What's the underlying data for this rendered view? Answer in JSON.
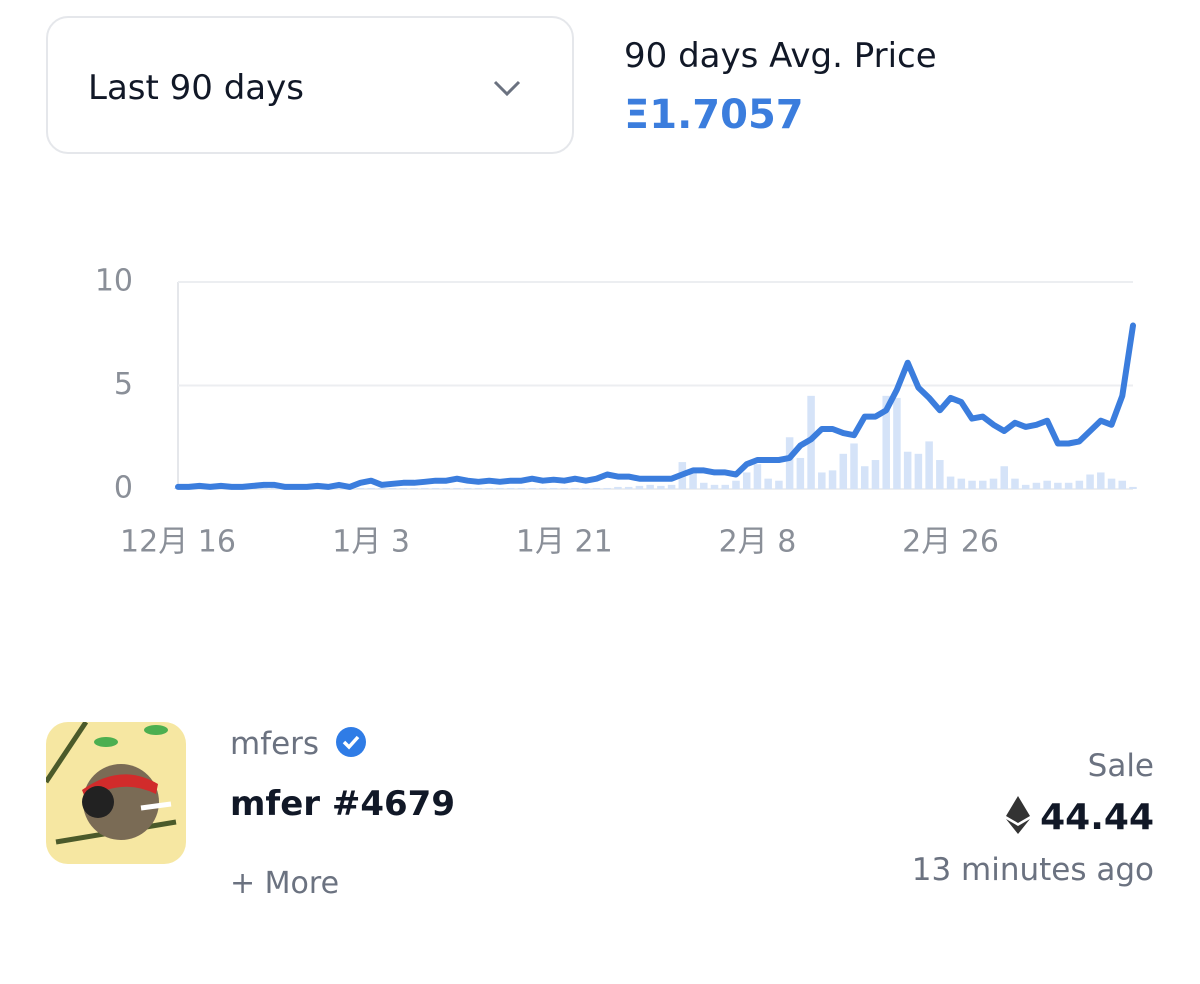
{
  "filter": {
    "label": "Last 90 days"
  },
  "summary": {
    "label": "90 days Avg. Price",
    "value": "Ξ1.7057"
  },
  "chart_data": {
    "type": "line",
    "categories": [
      "12月 16",
      null,
      null,
      null,
      null,
      null,
      null,
      null,
      null,
      null,
      null,
      null,
      null,
      null,
      null,
      null,
      null,
      null,
      "1月 3",
      null,
      null,
      null,
      null,
      null,
      null,
      null,
      null,
      null,
      null,
      null,
      null,
      null,
      null,
      null,
      null,
      null,
      "1月 21",
      null,
      null,
      null,
      null,
      null,
      null,
      null,
      null,
      null,
      null,
      null,
      null,
      null,
      null,
      null,
      null,
      null,
      "2月 8",
      null,
      null,
      null,
      null,
      null,
      null,
      null,
      null,
      null,
      null,
      null,
      null,
      null,
      null,
      null,
      null,
      null,
      "2月 26",
      null,
      null,
      null,
      null,
      null,
      null,
      null,
      null,
      null,
      null,
      null,
      null,
      null,
      null,
      null,
      null,
      null
    ],
    "series": [
      {
        "type": "bar",
        "color": "#d5e3f8",
        "values": [
          0.05,
          0.05,
          0.05,
          0.05,
          0.05,
          0.05,
          0.05,
          0.05,
          0.05,
          0.05,
          0.05,
          0.05,
          0.05,
          0.05,
          0.05,
          0.05,
          0.05,
          0.05,
          0.05,
          0.05,
          0.05,
          0.05,
          0.05,
          0.05,
          0.05,
          0.05,
          0.05,
          0.05,
          0.05,
          0.05,
          0.05,
          0.05,
          0.05,
          0.05,
          0.05,
          0.05,
          0.05,
          0.05,
          0.05,
          0.05,
          0.05,
          0.1,
          0.1,
          0.15,
          0.2,
          0.15,
          0.2,
          1.3,
          0.9,
          0.3,
          0.2,
          0.2,
          0.4,
          0.8,
          1.2,
          0.5,
          0.4,
          2.5,
          1.5,
          4.5,
          0.8,
          0.9,
          1.7,
          2.2,
          1.1,
          1.4,
          4.5,
          4.4,
          1.8,
          1.7,
          2.3,
          1.4,
          0.6,
          0.5,
          0.4,
          0.4,
          0.5,
          1.1,
          0.5,
          0.2,
          0.3,
          0.4,
          0.3,
          0.3,
          0.4,
          0.7,
          0.8,
          0.5,
          0.4,
          0.1
        ]
      },
      {
        "type": "line",
        "color": "#3b7ddd",
        "values": [
          0.1,
          0.1,
          0.15,
          0.1,
          0.15,
          0.1,
          0.1,
          0.15,
          0.2,
          0.2,
          0.1,
          0.1,
          0.1,
          0.15,
          0.1,
          0.2,
          0.1,
          0.3,
          0.4,
          0.2,
          0.25,
          0.3,
          0.3,
          0.35,
          0.4,
          0.4,
          0.5,
          0.4,
          0.35,
          0.4,
          0.35,
          0.4,
          0.4,
          0.5,
          0.4,
          0.45,
          0.4,
          0.5,
          0.4,
          0.5,
          0.7,
          0.6,
          0.6,
          0.5,
          0.5,
          0.5,
          0.5,
          0.7,
          0.9,
          0.9,
          0.8,
          0.8,
          0.7,
          1.2,
          1.4,
          1.4,
          1.4,
          1.5,
          2.1,
          2.4,
          2.9,
          2.9,
          2.7,
          2.6,
          3.5,
          3.5,
          3.8,
          4.8,
          6.1,
          4.9,
          4.4,
          3.8,
          4.4,
          4.2,
          3.4,
          3.5,
          3.1,
          2.8,
          3.2,
          3.0,
          3.1,
          3.3,
          2.2,
          2.2,
          2.3,
          2.8,
          3.3,
          3.1,
          4.5,
          7.9
        ]
      }
    ],
    "ylim": [
      0,
      10
    ],
    "yticks": [
      0,
      5,
      10
    ],
    "grid": true
  },
  "item": {
    "collection": "mfers",
    "name": "mfer #4679",
    "more": "+ More",
    "event": "Sale",
    "price": "44.44",
    "time": "13 minutes ago"
  }
}
